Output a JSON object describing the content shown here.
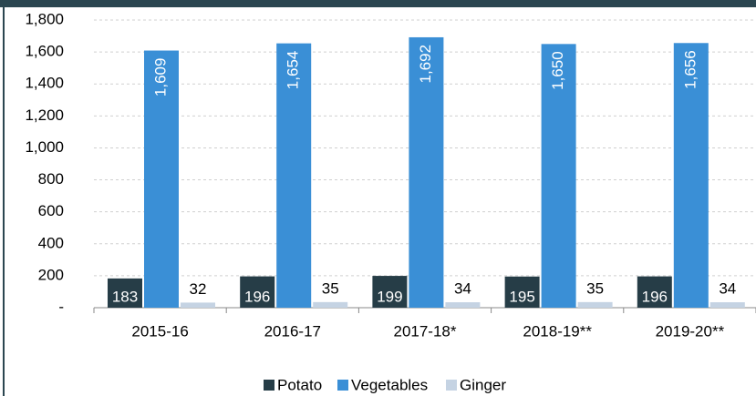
{
  "chart_data": {
    "type": "bar",
    "categories": [
      "2015-16",
      "2016-17",
      "2017-18*",
      "2018-19**",
      "2019-20**"
    ],
    "series": [
      {
        "name": "Potato",
        "color": "#263d47",
        "values": [
          183,
          196,
          199,
          195,
          196
        ]
      },
      {
        "name": "Vegetables",
        "color": "#3a8fd6",
        "values": [
          1609,
          1654,
          1692,
          1650,
          1656
        ],
        "value_labels": [
          "1,609",
          "1,654",
          "1,692",
          "1,650",
          "1,656"
        ]
      },
      {
        "name": "Ginger",
        "color": "#c5d3e3",
        "values": [
          32,
          35,
          34,
          35,
          34
        ]
      }
    ],
    "ylim": [
      0,
      1800
    ],
    "yticks": [
      {
        "value": 0,
        "label": "-"
      },
      200,
      400,
      600,
      800,
      {
        "value": 1000,
        "label": "1,000"
      },
      {
        "value": 1200,
        "label": "1,200"
      },
      {
        "value": 1400,
        "label": "1,400"
      },
      {
        "value": 1600,
        "label": "1,600"
      },
      {
        "value": 1800,
        "label": "1,800"
      }
    ],
    "grid": true,
    "legend": "bottom"
  }
}
